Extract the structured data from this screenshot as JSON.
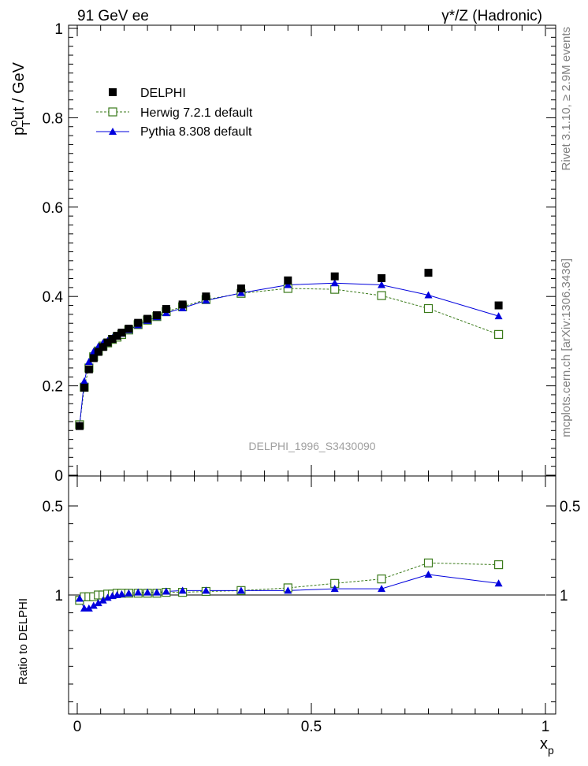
{
  "header": {
    "left": "91 GeV ee",
    "right": "γ*/Z (Hadronic)"
  },
  "side_labels": {
    "rivet": "Rivet 3.1.10, ≥ 2.9M events",
    "mcplots": "mcplots.cern.ch [arXiv:1306.3436]"
  },
  "watermark": "DELPHI_1996_S3430090",
  "colors": {
    "data": "#000000",
    "herwig": "#3a7a1a",
    "pythia": "#0000dd",
    "band_inner": "#ffff66",
    "band_outer": "#99ff99"
  },
  "chart_data": [
    {
      "type": "scatter",
      "panel": "main",
      "ylabel_main": "p",
      "ylabel_sup": "o",
      "ylabel_sub": "T",
      "ylabel_rest": "ut / GeV",
      "xlim": [
        0,
        1
      ],
      "ylim": [
        0,
        1
      ],
      "yticks": [
        "0",
        "0.2",
        "0.4",
        "0.6",
        "0.8",
        "1"
      ],
      "legend_position": "top-left",
      "series": [
        {
          "name": "DELPHI",
          "style": "filled-square",
          "x": [
            0.005,
            0.015,
            0.025,
            0.035,
            0.045,
            0.055,
            0.065,
            0.075,
            0.085,
            0.095,
            0.11,
            0.13,
            0.15,
            0.17,
            0.19,
            0.225,
            0.275,
            0.35,
            0.45,
            0.55,
            0.65,
            0.75,
            0.9
          ],
          "y": [
            0.11,
            0.196,
            0.237,
            0.262,
            0.276,
            0.287,
            0.297,
            0.305,
            0.312,
            0.319,
            0.328,
            0.341,
            0.35,
            0.358,
            0.372,
            0.382,
            0.4,
            0.418,
            0.436,
            0.445,
            0.441,
            0.453,
            0.38
          ]
        },
        {
          "name": "Herwig 7.2.1 default",
          "style": "open-square-dashed",
          "x": [
            0.005,
            0.015,
            0.025,
            0.035,
            0.045,
            0.055,
            0.065,
            0.075,
            0.085,
            0.095,
            0.11,
            0.13,
            0.15,
            0.17,
            0.19,
            0.225,
            0.275,
            0.35,
            0.45,
            0.55,
            0.65,
            0.75,
            0.9
          ],
          "y": [
            0.113,
            0.197,
            0.24,
            0.265,
            0.278,
            0.289,
            0.296,
            0.304,
            0.309,
            0.315,
            0.325,
            0.337,
            0.347,
            0.355,
            0.366,
            0.377,
            0.393,
            0.407,
            0.418,
            0.416,
            0.402,
            0.373,
            0.315
          ]
        },
        {
          "name": "Pythia 8.308 default",
          "style": "filled-triangle-solid",
          "x": [
            0.005,
            0.015,
            0.025,
            0.035,
            0.045,
            0.055,
            0.065,
            0.075,
            0.085,
            0.095,
            0.11,
            0.13,
            0.15,
            0.17,
            0.19,
            0.225,
            0.275,
            0.35,
            0.45,
            0.55,
            0.65,
            0.75,
            0.9
          ],
          "y": [
            0.112,
            0.21,
            0.254,
            0.277,
            0.288,
            0.296,
            0.301,
            0.307,
            0.312,
            0.317,
            0.325,
            0.336,
            0.346,
            0.354,
            0.363,
            0.374,
            0.391,
            0.408,
            0.426,
            0.43,
            0.426,
            0.403,
            0.356
          ]
        }
      ]
    },
    {
      "type": "scatter",
      "panel": "ratio",
      "ylabel": "Ratio to DELPHI",
      "xlabel_main": "x",
      "xlabel_sub": "p",
      "xlim": [
        0,
        1
      ],
      "ylim": [
        0.33,
        2.33
      ],
      "xticks": [
        "0",
        "0.5",
        "1"
      ],
      "yticks": [
        "0.5",
        "1",
        "2"
      ],
      "band": {
        "x_edges": [
          0,
          0.1,
          0.2,
          0.3,
          0.4,
          0.5,
          0.6,
          0.7,
          0.8,
          1.0
        ],
        "inner": [
          0.01,
          0.012,
          0.014,
          0.016,
          0.02,
          0.025,
          0.03,
          0.035,
          0.04
        ],
        "outer": [
          0.02,
          0.024,
          0.028,
          0.032,
          0.038,
          0.045,
          0.055,
          0.065,
          0.075
        ]
      },
      "series": [
        {
          "name": "Herwig 7.2.1 default",
          "style": "open-square-dashed",
          "x": [
            0.005,
            0.015,
            0.025,
            0.035,
            0.045,
            0.055,
            0.065,
            0.075,
            0.085,
            0.095,
            0.11,
            0.13,
            0.15,
            0.17,
            0.19,
            0.225,
            0.275,
            0.35,
            0.45,
            0.55,
            0.65,
            0.75,
            0.9
          ],
          "y": [
            1.03,
            1.01,
            1.01,
            1.01,
            1.0,
            1.0,
            0.995,
            0.995,
            0.99,
            0.99,
            0.99,
            0.99,
            0.99,
            0.99,
            0.985,
            0.985,
            0.98,
            0.975,
            0.96,
            0.935,
            0.91,
            0.82,
            0.83
          ]
        },
        {
          "name": "Pythia 8.308 default",
          "style": "filled-triangle-solid",
          "x": [
            0.005,
            0.015,
            0.025,
            0.035,
            0.045,
            0.055,
            0.065,
            0.075,
            0.085,
            0.095,
            0.11,
            0.13,
            0.15,
            0.17,
            0.19,
            0.225,
            0.275,
            0.35,
            0.45,
            0.55,
            0.65,
            0.75,
            0.9
          ],
          "y": [
            1.02,
            1.075,
            1.075,
            1.06,
            1.045,
            1.03,
            1.015,
            1.005,
            1.0,
            0.995,
            0.99,
            0.985,
            0.985,
            0.985,
            0.98,
            0.975,
            0.975,
            0.975,
            0.975,
            0.965,
            0.965,
            0.885,
            0.935
          ]
        }
      ]
    }
  ]
}
